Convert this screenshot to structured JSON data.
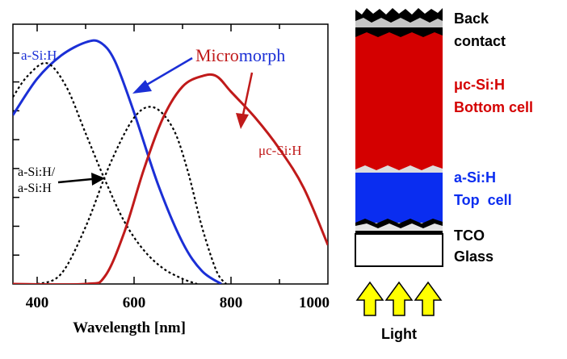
{
  "chart_data": {
    "type": "line",
    "xlabel": "Wavelength  [nm]",
    "xlim": [
      350,
      1000
    ],
    "ylim": [
      0,
      1
    ],
    "x_ticks": [
      400,
      600,
      800,
      1000
    ],
    "grid": false,
    "series": [
      {
        "name": "a-Si:H",
        "style": "solid",
        "color": "#1b2fd6",
        "points": [
          [
            350,
            0.65
          ],
          [
            400,
            0.79
          ],
          [
            450,
            0.88
          ],
          [
            500,
            0.93
          ],
          [
            530,
            0.93
          ],
          [
            560,
            0.86
          ],
          [
            600,
            0.66
          ],
          [
            650,
            0.38
          ],
          [
            700,
            0.16
          ],
          [
            740,
            0.05
          ],
          [
            780,
            0.0
          ]
        ]
      },
      {
        "name": "a-Si:H/\na-Si:H",
        "style": "dotted",
        "color": "#000000",
        "points": [
          [
            350,
            0.72
          ],
          [
            380,
            0.8
          ],
          [
            420,
            0.85
          ],
          [
            460,
            0.76
          ],
          [
            500,
            0.58
          ],
          [
            540,
            0.4
          ],
          [
            580,
            0.24
          ],
          [
            620,
            0.13
          ],
          [
            660,
            0.06
          ],
          [
            700,
            0.02
          ],
          [
            730,
            0.0
          ]
        ]
      },
      {
        "name": "",
        "style": "dotted",
        "color": "#000000",
        "points": [
          [
            350,
            0.0
          ],
          [
            400,
            0.0
          ],
          [
            450,
            0.04
          ],
          [
            500,
            0.22
          ],
          [
            550,
            0.46
          ],
          [
            600,
            0.64
          ],
          [
            640,
            0.68
          ],
          [
            680,
            0.6
          ],
          [
            710,
            0.44
          ],
          [
            740,
            0.22
          ],
          [
            770,
            0.05
          ],
          [
            790,
            0.0
          ]
        ]
      },
      {
        "name": "μc-Si:H",
        "style": "solid",
        "color": "#c01a1a",
        "points": [
          [
            350,
            0.0
          ],
          [
            500,
            0.0
          ],
          [
            540,
            0.03
          ],
          [
            580,
            0.2
          ],
          [
            620,
            0.44
          ],
          [
            660,
            0.64
          ],
          [
            700,
            0.76
          ],
          [
            740,
            0.8
          ],
          [
            770,
            0.8
          ],
          [
            800,
            0.74
          ],
          [
            850,
            0.64
          ],
          [
            900,
            0.52
          ],
          [
            950,
            0.37
          ],
          [
            1000,
            0.15
          ]
        ]
      }
    ],
    "annotations": {
      "top_label": "a-Si:H",
      "micromorph_part1": "Micro",
      "micromorph_part2": "morph",
      "muc_label": "μc-Si:H",
      "tandem_line1": "a-Si:H/",
      "tandem_line2": "a-Si:H"
    },
    "colors": {
      "blue": "#1b2fd6",
      "red": "#c01a1a",
      "black": "#000000"
    }
  },
  "stack": {
    "layers": [
      {
        "label_line1": "Back",
        "label_line2": "contact",
        "color": "#000000"
      },
      {
        "label_line1": "μc-Si:H",
        "label_line2": "Bottom cell",
        "color": "#d40000"
      },
      {
        "label_line1": "a-Si:H",
        "label_line2": "Top  cell",
        "color": "#0a2df0"
      },
      {
        "label_line1": "TCO",
        "label_line2": "Glass",
        "color": "#ffffff"
      }
    ],
    "light_label": "Light",
    "arrow_color": "#ffff00"
  }
}
